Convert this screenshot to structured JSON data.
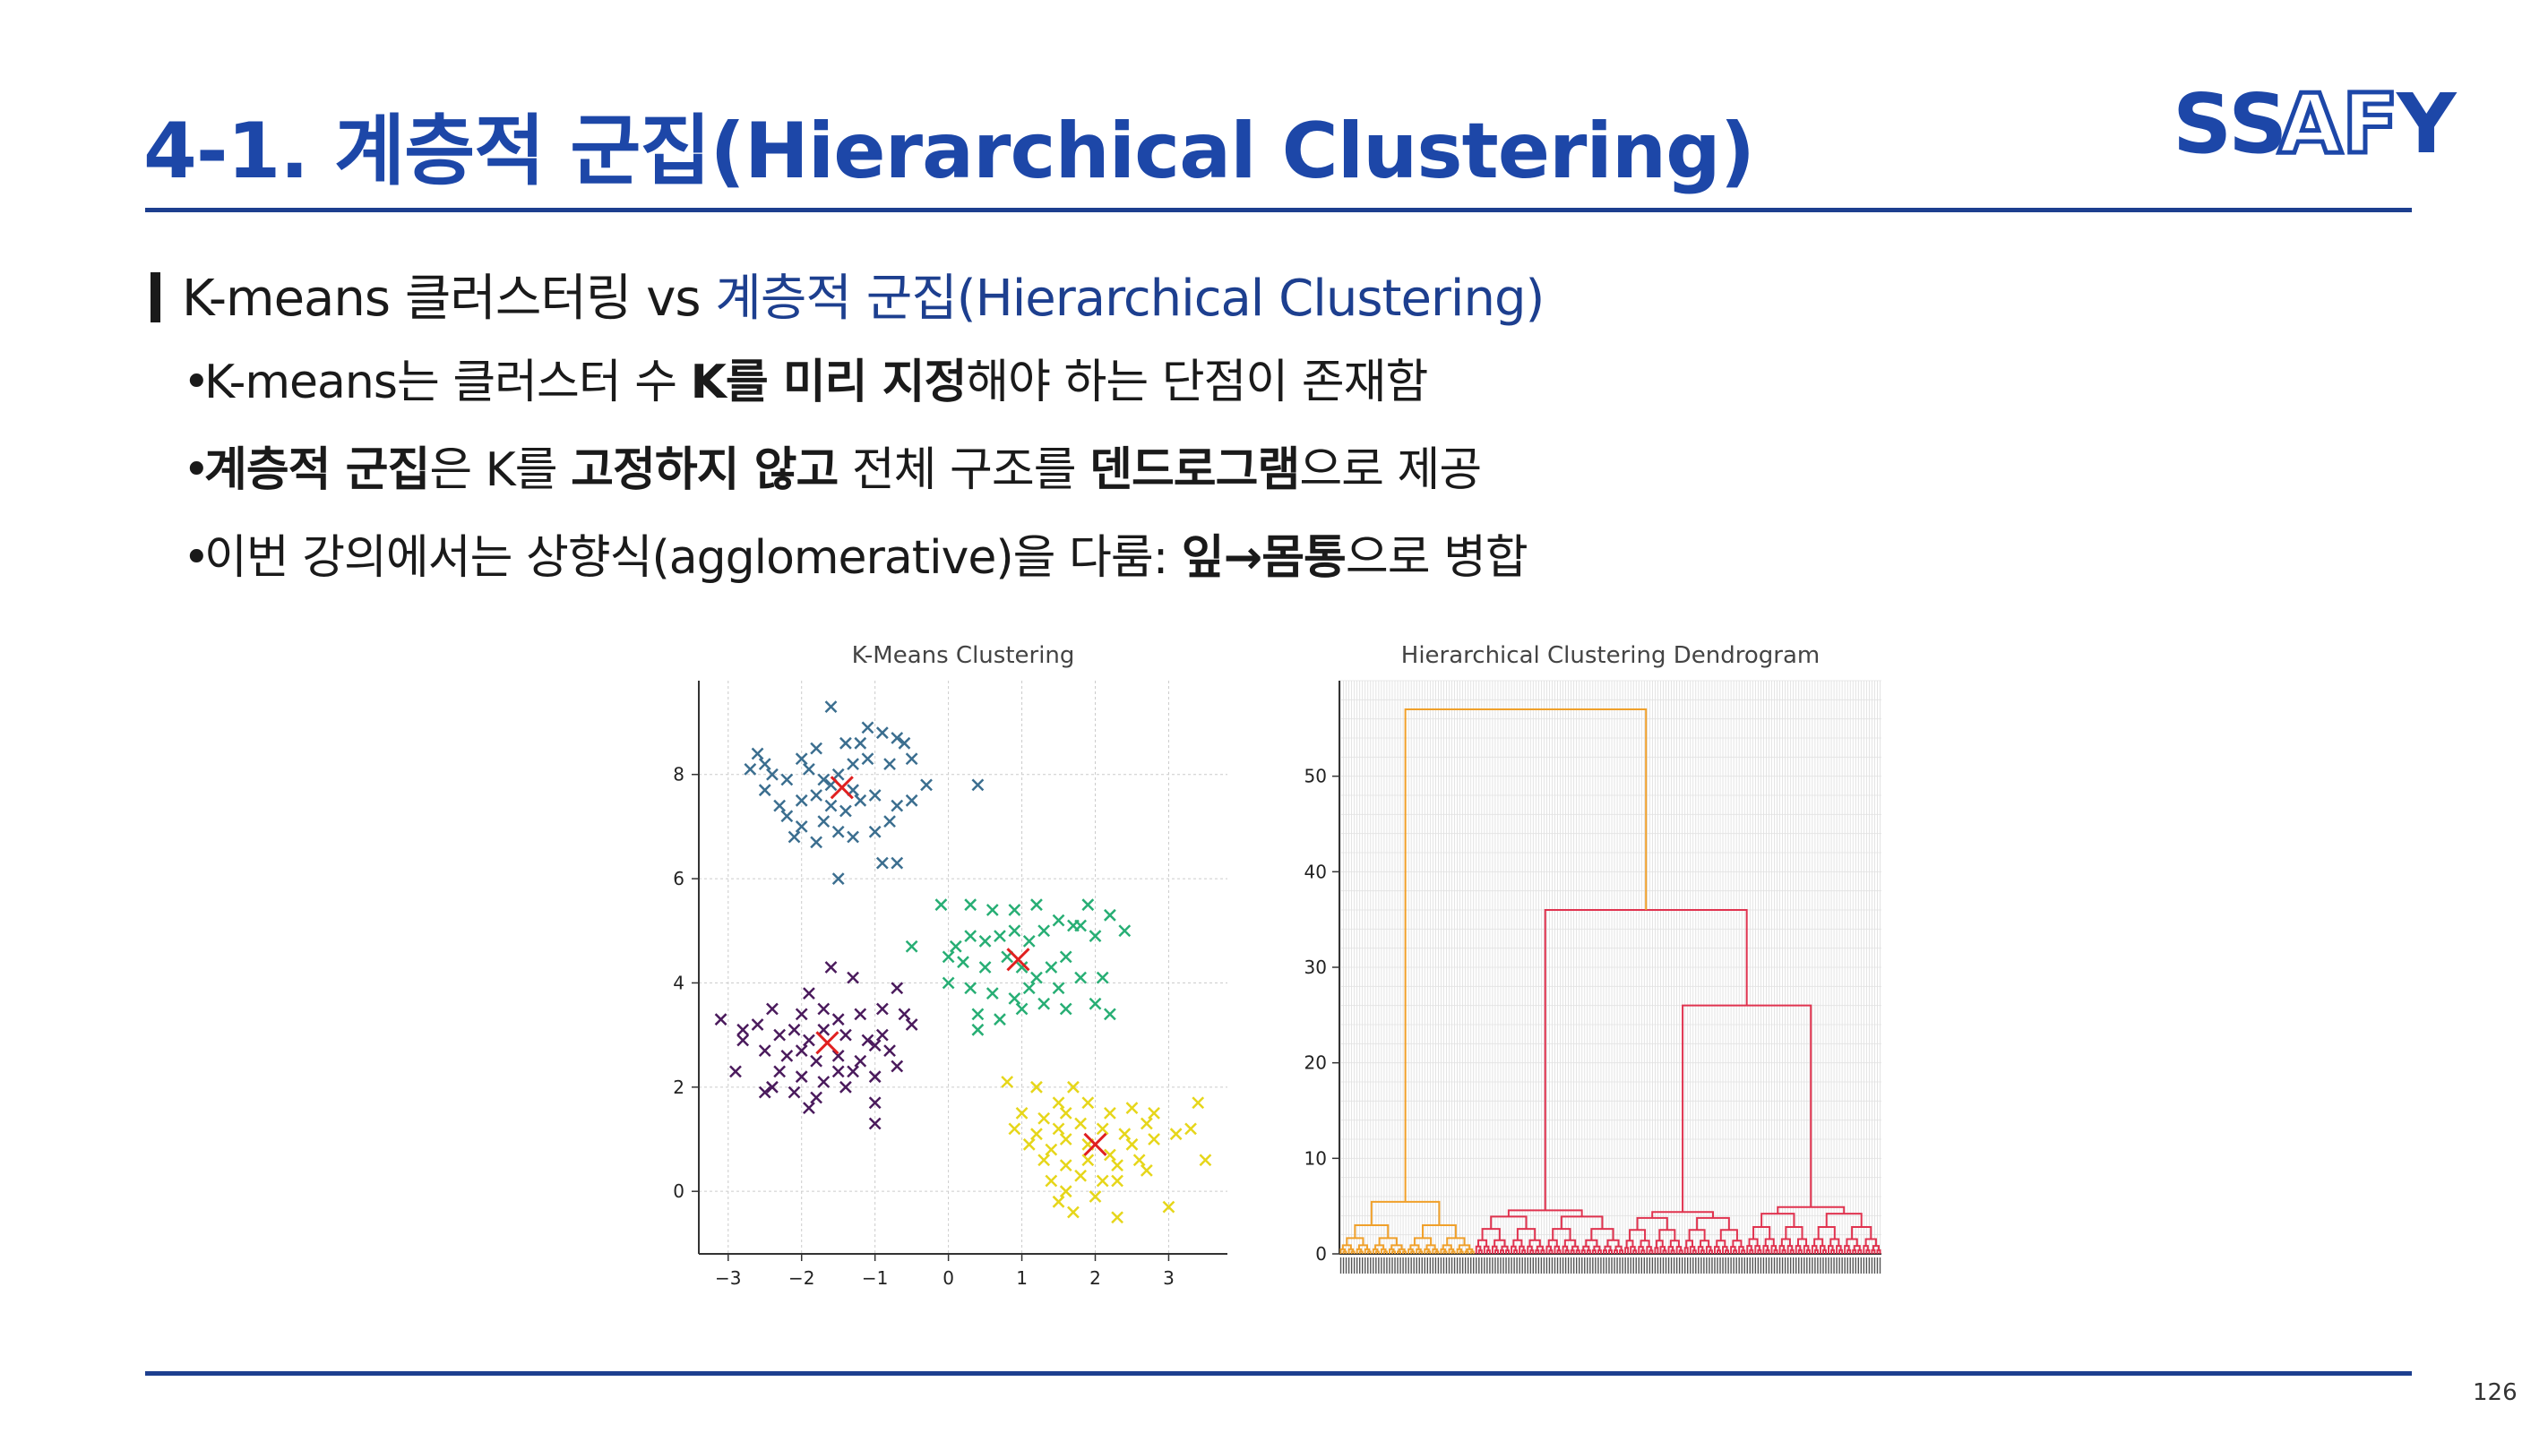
{
  "slide": {
    "title": "4-1. 계층적 군집(Hierarchical Clustering)",
    "page_number": "126"
  },
  "logo": {
    "text_left": "SS",
    "text_mid": "AF",
    "text_right": "Y"
  },
  "subheading": {
    "prefix": "K-means 클러스터링 vs ",
    "emphasis": "계층적 군집(Hierarchical Clustering)"
  },
  "bullets": [
    {
      "parts": [
        {
          "text": "K-means는 클러스터 수 ",
          "bold": false
        },
        {
          "text": "K를 미리 지정",
          "bold": true
        },
        {
          "text": "해야 하는 단점이 존재함",
          "bold": false
        }
      ]
    },
    {
      "parts": [
        {
          "text": "계층적 군집",
          "bold": true
        },
        {
          "text": "은 K를 ",
          "bold": false
        },
        {
          "text": "고정하지 않고",
          "bold": true
        },
        {
          "text": " 전체 구조를 ",
          "bold": false
        },
        {
          "text": "덴드로그램",
          "bold": true
        },
        {
          "text": "으로 제공",
          "bold": false
        }
      ]
    },
    {
      "parts": [
        {
          "text": "이번 강의에서는 상향식(agglomerative)을 다룸: ",
          "bold": false
        },
        {
          "text": "잎→몸통",
          "bold": true
        },
        {
          "text": "으로 병합",
          "bold": false
        }
      ]
    }
  ],
  "chart_data": [
    {
      "type": "scatter",
      "title": "K-Means Clustering",
      "xlabel": "",
      "ylabel": "",
      "xlim": [
        -3.4,
        3.8
      ],
      "ylim": [
        -1.2,
        9.8
      ],
      "xticks": [
        "−3",
        "−2",
        "−1",
        "0",
        "1",
        "2",
        "3"
      ],
      "xtick_values": [
        -3,
        -2,
        -1,
        0,
        1,
        2,
        3
      ],
      "yticks": [
        "0",
        "2",
        "4",
        "6",
        "8"
      ],
      "ytick_values": [
        0,
        2,
        4,
        6,
        8
      ],
      "grid": true,
      "marker": "x",
      "series": [
        {
          "color": "#3b6e8f",
          "center": [
            -1.45,
            7.75
          ],
          "points": [
            [
              -1.6,
              9.3
            ],
            [
              -1.1,
              8.9
            ],
            [
              -0.7,
              8.7
            ],
            [
              -0.9,
              8.8
            ],
            [
              -1.4,
              8.6
            ],
            [
              -2.0,
              8.3
            ],
            [
              -2.6,
              8.4
            ],
            [
              -2.7,
              8.1
            ],
            [
              -2.4,
              8.0
            ],
            [
              -2.2,
              7.9
            ],
            [
              -1.9,
              8.1
            ],
            [
              -1.7,
              7.9
            ],
            [
              -1.6,
              7.8
            ],
            [
              -1.5,
              8.0
            ],
            [
              -1.3,
              8.2
            ],
            [
              -1.1,
              8.3
            ],
            [
              -0.8,
              8.2
            ],
            [
              -0.5,
              8.3
            ],
            [
              -0.3,
              7.8
            ],
            [
              0.4,
              7.8
            ],
            [
              -2.5,
              7.7
            ],
            [
              -2.3,
              7.4
            ],
            [
              -2.0,
              7.5
            ],
            [
              -1.8,
              7.6
            ],
            [
              -1.6,
              7.4
            ],
            [
              -1.4,
              7.3
            ],
            [
              -1.2,
              7.5
            ],
            [
              -1.0,
              7.6
            ],
            [
              -0.7,
              7.4
            ],
            [
              -0.5,
              7.5
            ],
            [
              -2.2,
              7.2
            ],
            [
              -2.0,
              7.0
            ],
            [
              -1.7,
              7.1
            ],
            [
              -1.5,
              6.9
            ],
            [
              -1.3,
              6.8
            ],
            [
              -1.0,
              6.9
            ],
            [
              -0.8,
              7.1
            ],
            [
              -2.1,
              6.8
            ],
            [
              -1.8,
              6.7
            ],
            [
              -0.9,
              6.3
            ],
            [
              -0.7,
              6.3
            ],
            [
              -1.5,
              6.0
            ],
            [
              -1.2,
              8.6
            ],
            [
              -2.5,
              8.2
            ],
            [
              -1.8,
              8.5
            ],
            [
              -1.3,
              7.7
            ],
            [
              -0.6,
              8.6
            ]
          ]
        },
        {
          "color": "#27ae74",
          "center": [
            0.95,
            4.45
          ],
          "points": [
            [
              -0.1,
              5.5
            ],
            [
              0.3,
              5.5
            ],
            [
              0.6,
              5.4
            ],
            [
              0.9,
              5.4
            ],
            [
              1.2,
              5.5
            ],
            [
              1.9,
              5.5
            ],
            [
              2.2,
              5.3
            ],
            [
              2.4,
              5.0
            ],
            [
              2.0,
              4.9
            ],
            [
              1.8,
              5.1
            ],
            [
              1.5,
              5.2
            ],
            [
              1.3,
              5.0
            ],
            [
              1.1,
              4.8
            ],
            [
              0.9,
              5.0
            ],
            [
              0.7,
              4.9
            ],
            [
              0.5,
              4.8
            ],
            [
              0.3,
              4.9
            ],
            [
              0.1,
              4.7
            ],
            [
              -0.5,
              4.7
            ],
            [
              0.0,
              4.5
            ],
            [
              0.2,
              4.4
            ],
            [
              0.5,
              4.3
            ],
            [
              0.8,
              4.5
            ],
            [
              1.0,
              4.3
            ],
            [
              1.2,
              4.1
            ],
            [
              1.4,
              4.3
            ],
            [
              1.6,
              4.5
            ],
            [
              1.8,
              4.1
            ],
            [
              0.0,
              4.0
            ],
            [
              0.3,
              3.9
            ],
            [
              0.6,
              3.8
            ],
            [
              0.9,
              3.7
            ],
            [
              1.1,
              3.9
            ],
            [
              1.3,
              3.6
            ],
            [
              1.6,
              3.5
            ],
            [
              2.0,
              3.6
            ],
            [
              2.2,
              3.4
            ],
            [
              0.4,
              3.4
            ],
            [
              0.7,
              3.3
            ],
            [
              1.0,
              3.5
            ],
            [
              0.4,
              3.1
            ],
            [
              1.7,
              5.1
            ],
            [
              2.1,
              4.1
            ],
            [
              1.5,
              3.9
            ]
          ]
        },
        {
          "color": "#4a1a5c",
          "center": [
            -1.65,
            2.85
          ],
          "points": [
            [
              -1.6,
              4.3
            ],
            [
              -1.3,
              4.1
            ],
            [
              -0.7,
              3.9
            ],
            [
              -1.9,
              3.8
            ],
            [
              -2.4,
              3.5
            ],
            [
              -2.0,
              3.4
            ],
            [
              -1.7,
              3.5
            ],
            [
              -1.5,
              3.3
            ],
            [
              -1.2,
              3.4
            ],
            [
              -0.9,
              3.5
            ],
            [
              -0.6,
              3.4
            ],
            [
              -0.5,
              3.2
            ],
            [
              -3.1,
              3.3
            ],
            [
              -2.8,
              3.1
            ],
            [
              -2.6,
              3.2
            ],
            [
              -2.3,
              3.0
            ],
            [
              -2.1,
              3.1
            ],
            [
              -1.9,
              2.9
            ],
            [
              -1.7,
              3.1
            ],
            [
              -1.4,
              3.0
            ],
            [
              -1.1,
              2.9
            ],
            [
              -0.9,
              3.0
            ],
            [
              -2.8,
              2.9
            ],
            [
              -2.5,
              2.7
            ],
            [
              -2.2,
              2.6
            ],
            [
              -2.0,
              2.7
            ],
            [
              -1.8,
              2.5
            ],
            [
              -1.5,
              2.6
            ],
            [
              -1.2,
              2.5
            ],
            [
              -1.0,
              2.8
            ],
            [
              -0.8,
              2.7
            ],
            [
              -2.9,
              2.3
            ],
            [
              -2.3,
              2.3
            ],
            [
              -2.0,
              2.2
            ],
            [
              -1.7,
              2.1
            ],
            [
              -1.5,
              2.3
            ],
            [
              -1.3,
              2.3
            ],
            [
              -1.0,
              2.2
            ],
            [
              -0.7,
              2.4
            ],
            [
              -2.1,
              1.9
            ],
            [
              -1.8,
              1.8
            ],
            [
              -1.4,
              2.0
            ],
            [
              -1.0,
              1.7
            ],
            [
              -2.5,
              1.9
            ],
            [
              -1.9,
              1.6
            ],
            [
              -2.4,
              2.0
            ],
            [
              -1.0,
              1.3
            ]
          ]
        },
        {
          "color": "#e6d61a",
          "center": [
            2.0,
            0.9
          ],
          "points": [
            [
              0.8,
              2.1
            ],
            [
              1.2,
              2.0
            ],
            [
              1.7,
              2.0
            ],
            [
              1.5,
              1.7
            ],
            [
              1.9,
              1.7
            ],
            [
              3.4,
              1.7
            ],
            [
              1.0,
              1.5
            ],
            [
              1.3,
              1.4
            ],
            [
              1.6,
              1.5
            ],
            [
              2.2,
              1.5
            ],
            [
              2.5,
              1.6
            ],
            [
              2.8,
              1.5
            ],
            [
              0.9,
              1.2
            ],
            [
              1.2,
              1.1
            ],
            [
              1.5,
              1.2
            ],
            [
              1.8,
              1.3
            ],
            [
              2.1,
              1.2
            ],
            [
              2.4,
              1.1
            ],
            [
              2.7,
              1.3
            ],
            [
              3.3,
              1.2
            ],
            [
              1.1,
              0.9
            ],
            [
              1.4,
              0.8
            ],
            [
              1.6,
              1.0
            ],
            [
              1.9,
              0.9
            ],
            [
              2.2,
              0.7
            ],
            [
              2.5,
              0.9
            ],
            [
              2.8,
              1.0
            ],
            [
              3.1,
              1.1
            ],
            [
              1.3,
              0.6
            ],
            [
              1.6,
              0.5
            ],
            [
              1.9,
              0.6
            ],
            [
              2.3,
              0.5
            ],
            [
              2.6,
              0.6
            ],
            [
              3.5,
              0.6
            ],
            [
              1.4,
              0.2
            ],
            [
              1.8,
              0.3
            ],
            [
              2.1,
              0.2
            ],
            [
              1.6,
              0.0
            ],
            [
              2.0,
              -0.1
            ],
            [
              2.3,
              0.2
            ],
            [
              1.7,
              -0.4
            ],
            [
              2.3,
              -0.5
            ],
            [
              3.0,
              -0.3
            ],
            [
              1.5,
              -0.2
            ],
            [
              2.7,
              0.4
            ]
          ]
        }
      ]
    },
    {
      "type": "dendrogram",
      "title": "Hierarchical Clustering Dendrogram",
      "xlabel": "",
      "ylabel": "",
      "ylim": [
        0,
        60
      ],
      "yticks": [
        "0",
        "10",
        "20",
        "30",
        "40",
        "50"
      ],
      "ytick_values": [
        0,
        10,
        20,
        30,
        40,
        50
      ],
      "grid": true,
      "leaf_count": 200,
      "top_merge_height": 57,
      "branch_heights": {
        "orange_cluster": 6.5,
        "red_cluster": 36,
        "red_subcluster_left": 5.2,
        "red_subcluster_right": 26
      },
      "colors": {
        "orange": "#f0a02a",
        "red": "#e0334f",
        "root": "#f0a02a"
      }
    }
  ]
}
